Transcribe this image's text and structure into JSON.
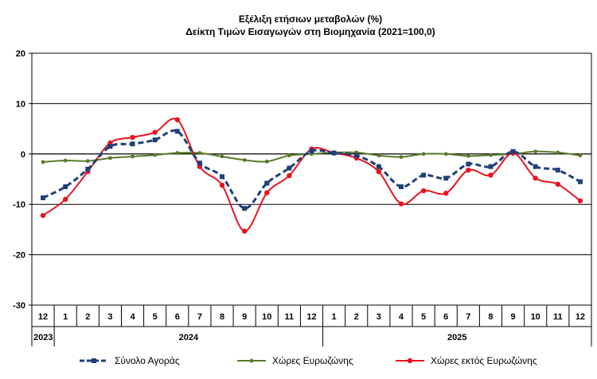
{
  "chart_data": {
    "type": "line",
    "title": "Εξέλιξη ετήσιων μεταβολών (%)",
    "subtitle": "Δείκτη Τιμών Εισαγωγών στη Βιομηχανία (2021=100,0)",
    "ylim": [
      -30,
      20
    ],
    "yticks": [
      20,
      10,
      0,
      -10,
      -20,
      -30
    ],
    "months": [
      "12",
      "1",
      "2",
      "3",
      "4",
      "5",
      "6",
      "7",
      "8",
      "9",
      "10",
      "11",
      "12",
      "1",
      "2",
      "3",
      "4",
      "5",
      "6",
      "7",
      "8",
      "9",
      "10",
      "11",
      "12"
    ],
    "years": [
      {
        "label": "2023",
        "start": 0,
        "end": 0
      },
      {
        "label": "2024",
        "start": 1,
        "end": 12
      },
      {
        "label": "2025",
        "start": 13,
        "end": 24
      }
    ],
    "series": [
      {
        "name": "Σύνολο Αγοράς",
        "color": "#1F3F7A",
        "style": "dashed",
        "marker": "square",
        "values": [
          -8.7,
          -6.5,
          -3.0,
          1.5,
          2.0,
          2.8,
          4.5,
          -1.8,
          -4.5,
          -10.8,
          -5.8,
          -2.8,
          0.6,
          0.2,
          -0.3,
          -2.5,
          -6.5,
          -4.2,
          -4.8,
          -2.0,
          -2.5,
          0.5,
          -2.5,
          -3.2,
          -5.5
        ]
      },
      {
        "name": "Χώρες Ευρωζώνης",
        "color": "#5A7A2A",
        "style": "solid",
        "marker": "circle",
        "values": [
          -1.6,
          -1.3,
          -1.4,
          -0.8,
          -0.5,
          -0.2,
          0.2,
          0.2,
          -0.5,
          -1.2,
          -1.5,
          -0.3,
          0.0,
          0.3,
          0.3,
          -0.3,
          -0.6,
          0.0,
          0.0,
          -0.4,
          -0.2,
          0.0,
          0.5,
          0.3,
          -0.3
        ]
      },
      {
        "name": "Χώρες εκτός Ευρωζώνης",
        "color": "#E8141E",
        "style": "solid",
        "marker": "circle",
        "values": [
          -12.2,
          -9.0,
          -3.5,
          2.2,
          3.3,
          4.3,
          6.8,
          -2.5,
          -6.2,
          -15.3,
          -7.7,
          -4.3,
          1.0,
          0.2,
          -0.8,
          -3.5,
          -9.9,
          -7.3,
          -7.8,
          -3.2,
          -4.2,
          0.2,
          -4.8,
          -6.0,
          -9.3
        ]
      }
    ]
  }
}
